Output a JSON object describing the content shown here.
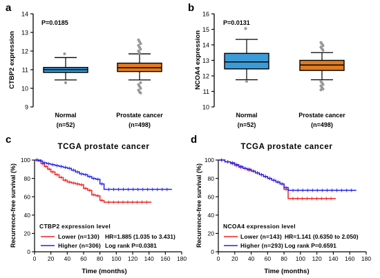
{
  "figure": {
    "panels": [
      {
        "letter": "a"
      },
      {
        "letter": "b"
      },
      {
        "letter": "c"
      },
      {
        "letter": "d"
      }
    ]
  },
  "chart_data": [
    {
      "type": "box",
      "panel": "a",
      "annotation": "P=0.0185",
      "ylabel": "CTBP2 expression",
      "ylim": [
        9,
        14
      ],
      "yticks": [
        "9",
        "10",
        "11",
        "12",
        "13",
        "14"
      ],
      "groups": [
        {
          "label": "Normal",
          "n_label": "(n=52)",
          "color": "#3c9bd6",
          "q1": 10.85,
          "median": 11.0,
          "q3": 11.12,
          "whisker_low": 10.45,
          "whisker_high": 11.65,
          "outliers": [
            11.85,
            10.3
          ]
        },
        {
          "label": "Prostate cancer",
          "n_label": "(n=498)",
          "color": "#e07b20",
          "q1": 10.9,
          "median": 11.1,
          "q3": 11.35,
          "whisker_low": 10.45,
          "whisker_high": 11.85,
          "outliers": [
            12.6,
            12.5,
            12.4,
            12.3,
            12.2,
            12.1,
            12.0,
            11.9,
            10.3,
            10.2,
            10.1,
            10.0,
            9.9,
            9.8,
            9.75
          ]
        }
      ]
    },
    {
      "type": "box",
      "panel": "b",
      "annotation": "P=0.0131",
      "ylabel": "NCOA4 expression",
      "ylim": [
        10,
        16
      ],
      "yticks": [
        "10",
        "11",
        "12",
        "13",
        "14",
        "15",
        "16"
      ],
      "groups": [
        {
          "label": "Normal",
          "n_label": "(n=52)",
          "color": "#3c9bd6",
          "q1": 12.45,
          "median": 12.9,
          "q3": 13.45,
          "whisker_low": 11.75,
          "whisker_high": 14.35,
          "outliers": [
            15.05,
            11.65
          ]
        },
        {
          "label": "Prostate cancer",
          "n_label": "(n=498)",
          "color": "#e07b20",
          "q1": 12.35,
          "median": 12.7,
          "q3": 13.0,
          "whisker_low": 11.75,
          "whisker_high": 13.5,
          "outliers": [
            14.15,
            14.05,
            13.95,
            13.85,
            13.75,
            13.65,
            11.65,
            11.55,
            11.45,
            11.35,
            11.25,
            11.15,
            11.1
          ]
        }
      ]
    },
    {
      "type": "line",
      "subtype": "kaplan-meier",
      "panel": "c",
      "title": "TCGA prostate cancer",
      "xlabel": "Time (months)",
      "ylabel": "Recurrence-free survival (%)",
      "xlim": [
        0,
        180
      ],
      "ylim": [
        0,
        100
      ],
      "xticks": [
        "0",
        "20",
        "40",
        "60",
        "80",
        "100",
        "120",
        "140",
        "160",
        "180"
      ],
      "yticks": [
        "0",
        "20",
        "40",
        "60",
        "80",
        "100"
      ],
      "legend_title": "CTBP2 expression level",
      "series": [
        {
          "name": "Lower (n=130)",
          "color": "#ee2222",
          "x": [
            0,
            8,
            12,
            16,
            20,
            25,
            30,
            35,
            40,
            45,
            50,
            55,
            60,
            65,
            70,
            75,
            80,
            85,
            143
          ],
          "y": [
            100,
            96,
            93,
            90,
            87,
            84,
            81,
            78,
            76,
            75,
            74,
            73,
            69,
            67,
            62,
            61,
            56,
            54,
            54
          ]
        },
        {
          "name": "Higher (n=306)",
          "color": "#2222ee",
          "x": [
            0,
            5,
            10,
            15,
            20,
            25,
            30,
            35,
            40,
            45,
            50,
            55,
            60,
            65,
            70,
            75,
            80,
            85,
            168
          ],
          "y": [
            100,
            99,
            97,
            96,
            95,
            94,
            93,
            92,
            91,
            89,
            87,
            85,
            84,
            82,
            80,
            79,
            74,
            68,
            68
          ]
        }
      ],
      "stats": {
        "hr": "HR=1.885 (1.035 to 3.431)",
        "log_rank": "Log rank P=0.0381"
      }
    },
    {
      "type": "line",
      "subtype": "kaplan-meier",
      "panel": "d",
      "title": "TCGA prostate cancer",
      "xlabel": "Time (months)",
      "ylabel": "Recurrence-free survival (%)",
      "xlim": [
        0,
        180
      ],
      "ylim": [
        0,
        100
      ],
      "xticks": [
        "0",
        "20",
        "40",
        "60",
        "80",
        "100",
        "120",
        "140",
        "160",
        "180"
      ],
      "yticks": [
        "0",
        "20",
        "40",
        "60",
        "80",
        "100"
      ],
      "legend_title": "NCOA4 expression level",
      "series": [
        {
          "name": "Lower (n=143)",
          "color": "#ee2222",
          "x": [
            0,
            8,
            15,
            20,
            25,
            30,
            35,
            40,
            45,
            50,
            55,
            60,
            65,
            70,
            75,
            80,
            85,
            143
          ],
          "y": [
            100,
            98,
            96,
            94,
            92,
            91,
            89,
            88,
            86,
            84,
            82,
            80,
            78,
            76,
            74,
            68,
            58,
            58
          ]
        },
        {
          "name": "Higher (n=293)",
          "color": "#2222ee",
          "x": [
            0,
            8,
            15,
            20,
            25,
            30,
            35,
            40,
            45,
            50,
            55,
            60,
            65,
            70,
            75,
            80,
            85,
            168
          ],
          "y": [
            100,
            98,
            97,
            95,
            93,
            91,
            90,
            88,
            86,
            84,
            82,
            80,
            78,
            76,
            74,
            70,
            67,
            67
          ]
        }
      ],
      "stats": {
        "hr": "HR=1.141 (0.6350 to 2.050)",
        "log_rank": "Log rank P=0.6591"
      }
    }
  ]
}
